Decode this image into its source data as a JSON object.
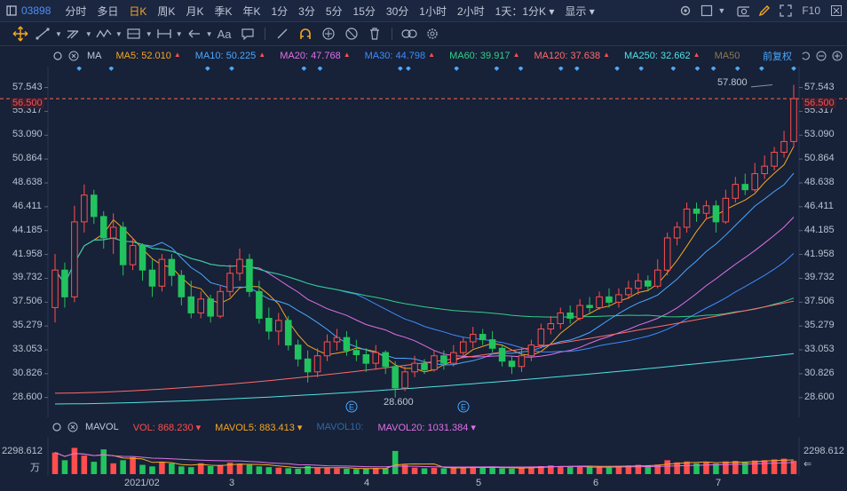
{
  "topbar": {
    "code": "03898",
    "periods": [
      "分时",
      "多日",
      "日K",
      "周K",
      "月K",
      "季K",
      "年K",
      "1分",
      "3分",
      "5分",
      "15分",
      "30分",
      "1小时",
      "2小时"
    ],
    "active_period": "日K",
    "range": "1天：1分K",
    "display": "显示",
    "fio": "F10"
  },
  "toolbar2": {
    "text_tool": "Aa"
  },
  "ma_bar": {
    "label": "MA",
    "items": [
      {
        "text": "MA5: 52.010",
        "color": "#f5a623"
      },
      {
        "text": "MA10: 50.225",
        "color": "#4aa8ff"
      },
      {
        "text": "MA20: 47.768",
        "color": "#e070e8"
      },
      {
        "text": "MA30: 44.798",
        "color": "#3c8cff"
      },
      {
        "text": "MA60: 39.917",
        "color": "#30d08a"
      },
      {
        "text": "MA120: 37.638",
        "color": "#ff6b6b"
      },
      {
        "text": "MA250: 32.662",
        "color": "#4fe3e3"
      },
      {
        "text": "MA50",
        "color": "#8a7a55"
      }
    ],
    "adjust": "前复权"
  },
  "price_axis": [
    "57.543",
    "55.317",
    "53.090",
    "50.864",
    "48.638",
    "46.411",
    "44.185",
    "41.958",
    "39.732",
    "37.506",
    "35.279",
    "33.053",
    "30.826",
    "28.600"
  ],
  "current_price": "56.500",
  "annotations": {
    "high": "57.800",
    "low": "28.600",
    "event_marker": "E"
  },
  "vol_bar": {
    "label": "MAVOL",
    "items": [
      {
        "text": "VOL: 868.230",
        "color": "#ff4e4e"
      },
      {
        "text": "MAVOL5: 883.413",
        "color": "#f5a623"
      },
      {
        "text": "MAVOL10:",
        "color": "#2d6aa8"
      },
      {
        "text": "MAVOL20: 1031.384",
        "color": "#e070e8"
      }
    ]
  },
  "vol_axis": {
    "top": "2298.612",
    "unit": "万"
  },
  "x_axis": [
    "2021/02",
    "3",
    "4",
    "5",
    "6",
    "7"
  ],
  "colors": {
    "up": "#ff4e4e",
    "down": "#22c35e",
    "bg": "#172137",
    "grid": "#243152"
  },
  "chart_data": {
    "type": "candlestick",
    "ylim": [
      28.0,
      58.5
    ],
    "candles": [
      [
        37.0,
        40.5,
        35.6,
        42.0
      ],
      [
        40.5,
        38.0,
        37.0,
        41.2
      ],
      [
        38.0,
        45.0,
        37.5,
        46.5
      ],
      [
        45.0,
        47.5,
        44.0,
        48.5
      ],
      [
        47.5,
        45.5,
        44.8,
        48.0
      ],
      [
        45.5,
        43.5,
        42.5,
        46.0
      ],
      [
        43.5,
        44.5,
        42.0,
        45.8
      ],
      [
        44.5,
        41.0,
        40.0,
        45.0
      ],
      [
        41.0,
        42.8,
        40.5,
        43.5
      ],
      [
        42.8,
        40.5,
        39.5,
        43.0
      ],
      [
        40.5,
        39.0,
        38.0,
        41.5
      ],
      [
        39.0,
        41.5,
        38.5,
        42.0
      ],
      [
        41.5,
        40.0,
        39.0,
        42.0
      ],
      [
        40.0,
        38.0,
        37.2,
        40.5
      ],
      [
        38.0,
        36.5,
        36.0,
        39.5
      ],
      [
        36.5,
        37.8,
        36.0,
        38.5
      ],
      [
        37.8,
        36.2,
        35.6,
        38.2
      ],
      [
        36.2,
        38.5,
        36.0,
        39.0
      ],
      [
        38.5,
        40.2,
        38.0,
        41.0
      ],
      [
        40.2,
        41.5,
        39.5,
        42.5
      ],
      [
        41.5,
        38.5,
        38.0,
        42.0
      ],
      [
        38.5,
        36.0,
        35.5,
        39.5
      ],
      [
        36.0,
        34.8,
        34.0,
        37.0
      ],
      [
        34.8,
        35.8,
        33.5,
        36.5
      ],
      [
        35.8,
        33.5,
        33.0,
        36.2
      ],
      [
        33.5,
        32.2,
        31.5,
        34.0
      ],
      [
        32.2,
        31.0,
        30.0,
        33.0
      ],
      [
        31.0,
        32.5,
        30.5,
        33.2
      ],
      [
        32.5,
        33.8,
        32.0,
        34.5
      ],
      [
        33.8,
        34.2,
        33.0,
        35.0
      ],
      [
        34.2,
        33.0,
        32.5,
        34.8
      ],
      [
        33.0,
        32.6,
        32.0,
        34.0
      ],
      [
        32.6,
        31.8,
        31.0,
        33.2
      ],
      [
        31.8,
        32.8,
        31.2,
        33.5
      ],
      [
        32.8,
        31.5,
        30.8,
        33.0
      ],
      [
        31.5,
        29.5,
        28.6,
        32.0
      ],
      [
        29.5,
        31.0,
        29.2,
        31.5
      ],
      [
        31.0,
        31.8,
        30.5,
        32.5
      ],
      [
        31.8,
        31.2,
        30.8,
        32.2
      ],
      [
        31.2,
        32.5,
        31.0,
        33.0
      ],
      [
        32.5,
        31.8,
        31.2,
        33.0
      ],
      [
        31.8,
        32.8,
        31.5,
        33.5
      ],
      [
        32.8,
        33.8,
        32.5,
        34.2
      ],
      [
        33.8,
        34.5,
        33.2,
        35.2
      ],
      [
        34.5,
        34.0,
        33.5,
        35.0
      ],
      [
        34.0,
        33.2,
        32.8,
        34.8
      ],
      [
        33.2,
        32.0,
        31.5,
        33.5
      ],
      [
        32.0,
        31.5,
        30.8,
        32.5
      ],
      [
        31.5,
        32.5,
        31.0,
        33.2
      ],
      [
        32.5,
        33.5,
        32.0,
        34.0
      ],
      [
        33.5,
        35.0,
        33.2,
        35.5
      ],
      [
        35.0,
        35.5,
        34.5,
        36.2
      ],
      [
        35.5,
        36.5,
        35.0,
        37.0
      ],
      [
        36.5,
        36.0,
        35.5,
        37.2
      ],
      [
        36.0,
        37.2,
        35.8,
        37.8
      ],
      [
        37.2,
        37.0,
        36.5,
        38.0
      ],
      [
        37.0,
        38.0,
        36.8,
        38.5
      ],
      [
        38.0,
        37.5,
        37.0,
        38.8
      ],
      [
        37.5,
        38.2,
        37.0,
        38.8
      ],
      [
        38.2,
        38.8,
        37.8,
        39.5
      ],
      [
        38.8,
        39.5,
        38.2,
        40.2
      ],
      [
        39.5,
        39.0,
        38.5,
        40.0
      ],
      [
        39.0,
        40.5,
        38.8,
        41.5
      ],
      [
        40.5,
        43.5,
        40.0,
        44.0
      ],
      [
        43.5,
        44.5,
        42.8,
        45.0
      ],
      [
        44.5,
        46.2,
        44.0,
        46.8
      ],
      [
        46.2,
        45.8,
        45.0,
        46.8
      ],
      [
        45.8,
        46.5,
        45.2,
        47.0
      ],
      [
        46.5,
        45.0,
        44.0,
        47.0
      ],
      [
        45.0,
        47.2,
        44.8,
        48.0
      ],
      [
        47.2,
        48.5,
        46.8,
        49.2
      ],
      [
        48.5,
        48.0,
        47.5,
        49.5
      ],
      [
        48.0,
        49.5,
        47.8,
        50.5
      ],
      [
        49.5,
        50.2,
        49.0,
        51.2
      ],
      [
        50.2,
        51.5,
        49.8,
        52.0
      ],
      [
        51.5,
        52.5,
        51.0,
        53.5
      ],
      [
        52.5,
        56.5,
        52.0,
        57.8
      ]
    ],
    "volume": [
      1400,
      900,
      1700,
      1200,
      800,
      1600,
      700,
      900,
      1100,
      600,
      500,
      800,
      700,
      500,
      450,
      700,
      520,
      600,
      750,
      680,
      600,
      500,
      450,
      420,
      380,
      350,
      520,
      420,
      400,
      380,
      350,
      330,
      360,
      400,
      380,
      1500,
      600,
      420,
      380,
      400,
      380,
      420,
      450,
      480,
      420,
      400,
      380,
      360,
      420,
      480,
      520,
      560,
      500,
      480,
      520,
      540,
      500,
      480,
      520,
      560,
      600,
      580,
      620,
      900,
      760,
      820,
      700,
      760,
      680,
      820,
      860,
      780,
      880,
      900,
      950,
      1000,
      868
    ]
  }
}
